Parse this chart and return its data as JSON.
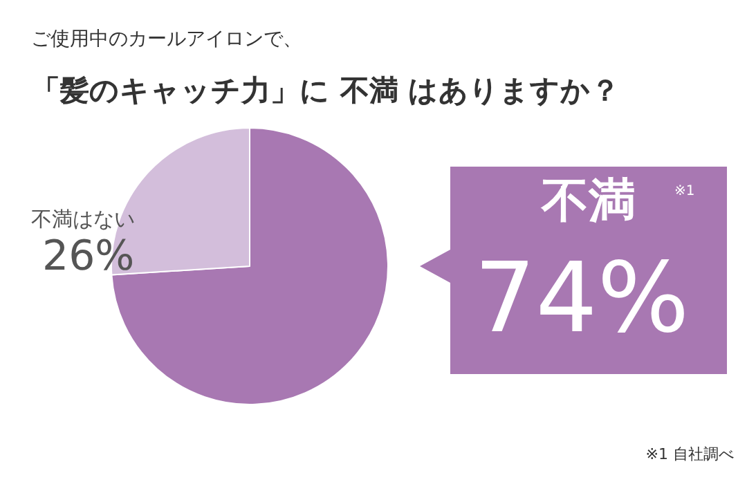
{
  "chart_data": {
    "type": "pie",
    "title": "ご使用中のカールアイロンで、",
    "subtitle": "「髪のキャッチ力」に 不満 はありますか？",
    "categories": [
      "不満",
      "不満はない"
    ],
    "values": [
      74,
      26
    ],
    "colors": [
      "#a878b2",
      "#d3bedb"
    ],
    "value_labels": [
      "74%",
      "26%"
    ],
    "annotations": [
      "※1",
      "※1 自社調べ"
    ]
  }
}
